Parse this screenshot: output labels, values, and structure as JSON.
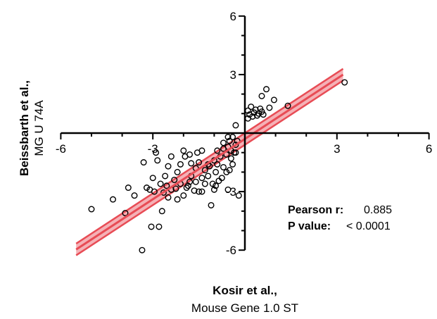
{
  "chart_data": {
    "type": "scatter",
    "xlabel_bold": "Kosir et al.,",
    "xlabel_sub": "Mouse Gene 1.0  ST",
    "ylabel_bold": "Beissbarth et al.,",
    "ylabel_sub": "MG U 74A",
    "xlim": [
      -6,
      6
    ],
    "ylim": [
      -6,
      6
    ],
    "xticks": [
      -6,
      -3,
      3,
      6
    ],
    "yticks": [
      -6,
      -3,
      3,
      6
    ],
    "x_tick_labels": [
      "-6",
      "-3",
      "3",
      "6"
    ],
    "y_tick_labels": [
      "-6",
      "-3",
      "3",
      "6"
    ],
    "grid": false,
    "regression": {
      "slope": 1.03,
      "intercept": -0.3,
      "ci_band": 0.3,
      "x_range": [
        -5.5,
        3.2
      ],
      "color": "#e84c55",
      "band_color": "#f3a3a9"
    },
    "stats": {
      "pearson_key": "Pearson r:",
      "pearson_value": "0.885",
      "p_key": "P value:",
      "p_value": "< 0.0001"
    },
    "points": [
      [
        3.25,
        2.6
      ],
      [
        0.7,
        2.25
      ],
      [
        0.55,
        1.9
      ],
      [
        0.95,
        1.7
      ],
      [
        1.4,
        1.4
      ],
      [
        0.2,
        1.35
      ],
      [
        0.35,
        1.2
      ],
      [
        0.5,
        1.25
      ],
      [
        0.1,
        1.15
      ],
      [
        0.3,
        1.05
      ],
      [
        0.15,
        0.95
      ],
      [
        0.45,
        1.0
      ],
      [
        0.6,
        0.95
      ],
      [
        0.25,
        0.85
      ],
      [
        0.4,
        0.9
      ],
      [
        0.55,
        1.1
      ],
      [
        0.8,
        1.3
      ],
      [
        0.1,
        0.75
      ],
      [
        -0.3,
        0.4
      ],
      [
        -0.4,
        -0.2
      ],
      [
        -0.5,
        -0.4
      ],
      [
        -0.55,
        -0.7
      ],
      [
        -0.45,
        -0.9
      ],
      [
        -0.3,
        -0.6
      ],
      [
        -0.35,
        -1.0
      ],
      [
        -0.6,
        -1.1
      ],
      [
        -0.8,
        -1.2
      ],
      [
        -0.7,
        -0.5
      ],
      [
        -0.9,
        -0.9
      ],
      [
        -1.0,
        -1.4
      ],
      [
        -1.2,
        -1.6
      ],
      [
        -1.3,
        -1.9
      ],
      [
        -0.95,
        -2.0
      ],
      [
        -0.75,
        -2.3
      ],
      [
        -1.05,
        -2.6
      ],
      [
        -1.4,
        -0.9
      ],
      [
        -1.5,
        -1.5
      ],
      [
        -1.6,
        -1.8
      ],
      [
        -1.75,
        -2.2
      ],
      [
        -1.85,
        -2.7
      ],
      [
        -1.95,
        -1.2
      ],
      [
        -2.1,
        -1.6
      ],
      [
        -2.2,
        -2.0
      ],
      [
        -2.3,
        -2.4
      ],
      [
        -2.4,
        -2.9
      ],
      [
        -2.5,
        -1.7
      ],
      [
        -2.6,
        -2.2
      ],
      [
        -2.75,
        -2.6
      ],
      [
        -2.85,
        -1.4
      ],
      [
        -3.0,
        -2.3
      ],
      [
        -3.1,
        -2.9
      ],
      [
        -2.9,
        -1.0
      ],
      [
        -2.0,
        -0.9
      ],
      [
        -1.8,
        -1.1
      ],
      [
        -1.6,
        -2.5
      ],
      [
        -1.3,
        -2.6
      ],
      [
        -1.2,
        -2.2
      ],
      [
        -1.1,
        -3.7
      ],
      [
        -1.0,
        -2.9
      ],
      [
        -0.55,
        -2.9
      ],
      [
        -0.4,
        -1.6
      ],
      [
        -0.45,
        -1.3
      ],
      [
        -0.6,
        -2.0
      ],
      [
        -1.4,
        -3.0
      ],
      [
        -2.0,
        -3.2
      ],
      [
        -2.2,
        -3.4
      ],
      [
        -2.5,
        -3.3
      ],
      [
        -2.7,
        -4.0
      ],
      [
        -3.2,
        -2.8
      ],
      [
        -3.6,
        -3.2
      ],
      [
        -3.8,
        -2.8
      ],
      [
        -4.3,
        -3.4
      ],
      [
        -3.3,
        -1.5
      ],
      [
        -2.8,
        -4.8
      ],
      [
        -3.05,
        -4.8
      ],
      [
        -3.35,
        -6.0
      ],
      [
        -5.0,
        -3.9
      ],
      [
        -3.9,
        -4.1
      ],
      [
        -1.9,
        -2.8
      ],
      [
        -1.5,
        -3.0
      ],
      [
        -0.9,
        -1.6
      ],
      [
        -0.7,
        -1.75
      ],
      [
        -0.2,
        -3.2
      ],
      [
        -2.4,
        -1.2
      ],
      [
        -2.1,
        -2.6
      ],
      [
        -1.8,
        -2.5
      ],
      [
        -1.4,
        -2.3
      ],
      [
        -1.15,
        -1.7
      ],
      [
        -0.85,
        -2.45
      ],
      [
        -0.5,
        -1.9
      ],
      [
        -0.3,
        -1.0
      ],
      [
        -0.25,
        -0.4
      ],
      [
        -0.55,
        -0.2
      ],
      [
        -0.7,
        -0.8
      ],
      [
        -1.55,
        -1.0
      ],
      [
        -1.75,
        -1.55
      ],
      [
        -2.55,
        -2.7
      ],
      [
        -2.95,
        -3.0
      ],
      [
        -2.65,
        -3.05
      ],
      [
        -2.25,
        -2.85
      ],
      [
        -1.65,
        -2.95
      ],
      [
        -0.95,
        -2.7
      ]
    ]
  }
}
